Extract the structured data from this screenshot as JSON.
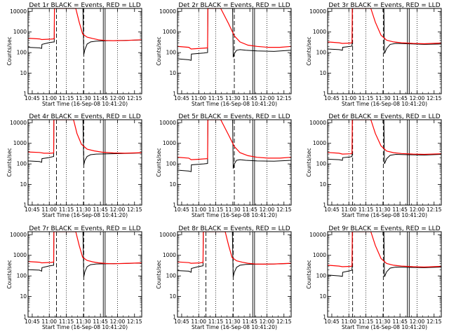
{
  "figure": {
    "panels": [
      {
        "title": "Det 1r BLACK = Events, RED = LLD"
      },
      {
        "title": "Det 2r BLACK = Events, RED = LLD"
      },
      {
        "title": "Det 3r BLACK = Events, RED = LLD"
      },
      {
        "title": "Det 4r BLACK = Events, RED = LLD"
      },
      {
        "title": "Det 5r BLACK = Events, RED = LLD"
      },
      {
        "title": "Det 6r BLACK = Events, RED = LLD"
      },
      {
        "title": "Det 7r BLACK = Events, RED = LLD"
      },
      {
        "title": "Det 8r BLACK = Events, RED = LLD"
      },
      {
        "title": "Det 9r BLACK = Events, RED = LLD"
      }
    ]
  },
  "chart_data": {
    "type": "line",
    "layout": "3x3 grid",
    "xlabel": "Start Time (16-Sep-08 10:41:20)",
    "ylabel": "Counts/sec",
    "xticklabels": [
      "10:45",
      "11:00",
      "11:15",
      "11:30",
      "11:45",
      "12:00",
      "12:15"
    ],
    "xtick_minutes": [
      3.67,
      18.67,
      33.67,
      48.67,
      63.67,
      78.67,
      93.67
    ],
    "xlim_minutes": [
      0,
      100
    ],
    "yticklabels": [
      "1",
      "10",
      "100",
      "1000",
      "10000"
    ],
    "yscale": "log",
    "ylim": [
      1,
      14000
    ],
    "colors": {
      "events": "#000000",
      "lld": "#ff0000",
      "axes": "#000000"
    },
    "panels": [
      {
        "title": "Det 1r BLACK = Events, RED = LLD",
        "vlines_dotted": [
          18.7,
          33.7,
          78.7
        ],
        "vlines_dashed": [
          25.0,
          49.0
        ],
        "vlines_double": [
          67.0
        ],
        "series": [
          {
            "name": "Events",
            "color": "#000000",
            "x": [
              0,
              10,
              12,
              12.2,
              18,
              19.5,
              21,
              23,
              23.2,
              48.3,
              49,
              50,
              52,
              55,
              60,
              70,
              85,
              100
            ],
            "y": [
              180,
              170,
              160,
              250,
              300,
              310,
              320,
              330,
              14000,
              14000,
              80,
              140,
              260,
              330,
              360,
              380,
              390,
              410
            ]
          },
          {
            "name": "LLD",
            "color": "#ff0000",
            "x": [
              0,
              10,
              12,
              20,
              22,
              23,
              23.2,
              42,
              45,
              48,
              52,
              57,
              62,
              68,
              75,
              85,
              100
            ],
            "y": [
              500,
              460,
              430,
              450,
              460,
              480,
              14000,
              14000,
              3000,
              800,
              560,
              480,
              420,
              390,
              380,
              390,
              420
            ]
          }
        ]
      },
      {
        "title": "Det 2r BLACK = Events, RED = LLD",
        "vlines_dotted": [
          18.7,
          33.7,
          78.7
        ],
        "vlines_dashed": [
          50.0
        ],
        "vlines_double": [
          67.0
        ],
        "series": [
          {
            "name": "Events",
            "color": "#000000",
            "x": [
              0,
              10,
              12,
              12.2,
              23,
              26.5,
              26.7,
              48.5,
              49,
              50,
              52,
              55,
              60,
              70,
              85,
              100
            ],
            "y": [
              50,
              45,
              42,
              85,
              95,
              100,
              14000,
              14000,
              60,
              90,
              130,
              140,
              130,
              120,
              115,
              130
            ]
          },
          {
            "name": "LLD",
            "color": "#ff0000",
            "x": [
              0,
              10,
              12,
              20,
              26.5,
              26.7,
              38,
              45,
              50,
              55,
              62,
              70,
              80,
              90,
              100
            ],
            "y": [
              200,
              180,
              150,
              160,
              170,
              14000,
              14000,
              2500,
              650,
              330,
              230,
              200,
              180,
              180,
              200
            ]
          }
        ]
      },
      {
        "title": "Det 3r BLACK = Events, RED = LLD",
        "vlines_dotted": [
          18.7,
          33.7,
          78.7
        ],
        "vlines_dashed": [
          22.0,
          49.0
        ],
        "vlines_double": [
          71.0
        ],
        "series": [
          {
            "name": "Events",
            "color": "#000000",
            "x": [
              0,
              10,
              13,
              13.2,
              20,
              21.5,
              21.7,
              49.5,
              50,
              52,
              55,
              60,
              70,
              85,
              100
            ],
            "y": [
              150,
              140,
              130,
              180,
              200,
              210,
              14000,
              14000,
              90,
              160,
              250,
              280,
              270,
              250,
              260
            ]
          },
          {
            "name": "LLD",
            "color": "#ff0000",
            "x": [
              0,
              10,
              13,
              20,
              21.5,
              21.7,
              38,
              42,
              47,
              52,
              58,
              65,
              75,
              85,
              100
            ],
            "y": [
              330,
              300,
              280,
              290,
              300,
              14000,
              14000,
              3000,
              700,
              400,
              330,
              300,
              280,
              270,
              290
            ]
          }
        ]
      },
      {
        "title": "Det 4r BLACK = Events, RED = LLD",
        "vlines_dotted": [
          18.7,
          33.7,
          78.7
        ],
        "vlines_dashed": [
          25.0,
          49.0
        ],
        "vlines_double": [
          67.0
        ],
        "series": [
          {
            "name": "Events",
            "color": "#000000",
            "x": [
              0,
              10,
              12,
              12.2,
              18,
              21,
              22.5,
              22.7,
              48.3,
              49,
              50,
              52,
              55,
              60,
              70,
              85,
              100
            ],
            "y": [
              140,
              130,
              120,
              180,
              200,
              220,
              230,
              14000,
              14000,
              90,
              150,
              230,
              280,
              300,
              310,
              320,
              340
            ]
          },
          {
            "name": "LLD",
            "color": "#ff0000",
            "x": [
              0,
              10,
              14,
              20,
              22.5,
              22.7,
              40,
              43,
              47,
              52,
              58,
              65,
              75,
              85,
              100
            ],
            "y": [
              380,
              360,
              330,
              330,
              340,
              14000,
              14000,
              3000,
              900,
              520,
              430,
              370,
              340,
              330,
              350
            ]
          }
        ]
      },
      {
        "title": "Det 5r BLACK = Events, RED = LLD",
        "vlines_dotted": [
          18.7,
          33.7,
          78.7
        ],
        "vlines_dashed": [
          50.0
        ],
        "vlines_double": [
          67.0
        ],
        "series": [
          {
            "name": "Events",
            "color": "#000000",
            "x": [
              0,
              10,
              12,
              12.2,
              23,
              26.5,
              26.7,
              48.5,
              49,
              50,
              52,
              55,
              60,
              70,
              85,
              100
            ],
            "y": [
              50,
              45,
              42,
              90,
              100,
              105,
              14000,
              14000,
              60,
              100,
              150,
              160,
              150,
              140,
              135,
              150
            ]
          },
          {
            "name": "LLD",
            "color": "#ff0000",
            "x": [
              0,
              10,
              12,
              20,
              26.5,
              26.7,
              38,
              45,
              50,
              55,
              62,
              70,
              80,
              90,
              100
            ],
            "y": [
              210,
              190,
              160,
              170,
              180,
              14000,
              14000,
              2500,
              700,
              350,
              250,
              210,
              190,
              190,
              210
            ]
          }
        ]
      },
      {
        "title": "Det 6r BLACK = Events, RED = LLD",
        "vlines_dotted": [
          18.7,
          33.7,
          78.7
        ],
        "vlines_dashed": [
          22.0,
          49.0
        ],
        "vlines_double": [
          71.0
        ],
        "series": [
          {
            "name": "Events",
            "color": "#000000",
            "x": [
              0,
              10,
              13,
              13.2,
              20,
              21.5,
              21.7,
              49.5,
              50,
              52,
              55,
              60,
              70,
              85,
              100
            ],
            "y": [
              170,
              160,
              150,
              200,
              220,
              230,
              14000,
              14000,
              100,
              180,
              260,
              290,
              280,
              270,
              290
            ]
          },
          {
            "name": "LLD",
            "color": "#ff0000",
            "x": [
              0,
              10,
              13,
              20,
              21.5,
              21.7,
              38,
              42,
              47,
              52,
              58,
              65,
              75,
              85,
              100
            ],
            "y": [
              360,
              330,
              300,
              310,
              320,
              14000,
              14000,
              3000,
              750,
              420,
              350,
              320,
              300,
              290,
              310
            ]
          }
        ]
      },
      {
        "title": "Det 7r BLACK = Events, RED = LLD",
        "vlines_dotted": [
          18.7,
          33.7,
          78.7
        ],
        "vlines_dashed": [
          25.0,
          49.0
        ],
        "vlines_double": [
          67.0
        ],
        "series": [
          {
            "name": "Events",
            "color": "#000000",
            "x": [
              0,
              10,
              12,
              12.2,
              18,
              21,
              22.5,
              22.7,
              48.3,
              49,
              50,
              52,
              55,
              60,
              70,
              85,
              100
            ],
            "y": [
              200,
              190,
              170,
              250,
              300,
              320,
              330,
              14000,
              14000,
              90,
              160,
              280,
              350,
              380,
              390,
              400,
              420
            ]
          },
          {
            "name": "LLD",
            "color": "#ff0000",
            "x": [
              0,
              10,
              12,
              20,
              22.5,
              22.7,
              42,
              45,
              48,
              52,
              57,
              62,
              68,
              75,
              85,
              100
            ],
            "y": [
              500,
              460,
              430,
              450,
              470,
              14000,
              14000,
              3000,
              800,
              560,
              480,
              430,
              400,
              390,
              400,
              430
            ]
          }
        ]
      },
      {
        "title": "Det 8r BLACK = Events, RED = LLD",
        "vlines_dotted": [
          18.7,
          33.7,
          78.7
        ],
        "vlines_dashed": [
          25.0,
          49.0
        ],
        "vlines_double": [
          67.0
        ],
        "series": [
          {
            "name": "Events",
            "color": "#000000",
            "x": [
              0,
              10,
              12,
              12.2,
              18,
              21,
              22.5,
              22.7,
              48.3,
              49,
              50,
              52,
              55,
              60,
              70,
              85,
              100
            ],
            "y": [
              180,
              170,
              150,
              230,
              280,
              300,
              310,
              14000,
              14000,
              90,
              150,
              260,
              330,
              360,
              370,
              380,
              400
            ]
          },
          {
            "name": "LLD",
            "color": "#ff0000",
            "x": [
              0,
              10,
              12,
              20,
              22.5,
              22.7,
              42,
              45,
              48,
              52,
              57,
              62,
              68,
              75,
              85,
              100
            ],
            "y": [
              480,
              440,
              410,
              430,
              450,
              14000,
              14000,
              3000,
              780,
              540,
              460,
              410,
              380,
              370,
              380,
              410
            ]
          }
        ]
      },
      {
        "title": "Det 9r BLACK = Events, RED = LLD",
        "vlines_dotted": [
          18.7,
          33.7,
          78.7
        ],
        "vlines_dashed": [
          22.0,
          49.0
        ],
        "vlines_double": [
          71.0
        ],
        "series": [
          {
            "name": "Events",
            "color": "#000000",
            "x": [
              0,
              10,
              13,
              13.2,
              20,
              21.5,
              21.7,
              49.5,
              50,
              52,
              55,
              60,
              70,
              85,
              100
            ],
            "y": [
              110,
              100,
              95,
              150,
              180,
              190,
              14000,
              14000,
              90,
              160,
              240,
              270,
              260,
              250,
              270
            ]
          },
          {
            "name": "LLD",
            "color": "#ff0000",
            "x": [
              0,
              10,
              13,
              20,
              21.5,
              21.7,
              38,
              42,
              47,
              52,
              58,
              65,
              75,
              85,
              100
            ],
            "y": [
              330,
              300,
              280,
              290,
              300,
              14000,
              14000,
              3000,
              700,
              400,
              330,
              300,
              280,
              270,
              290
            ]
          }
        ]
      }
    ]
  }
}
